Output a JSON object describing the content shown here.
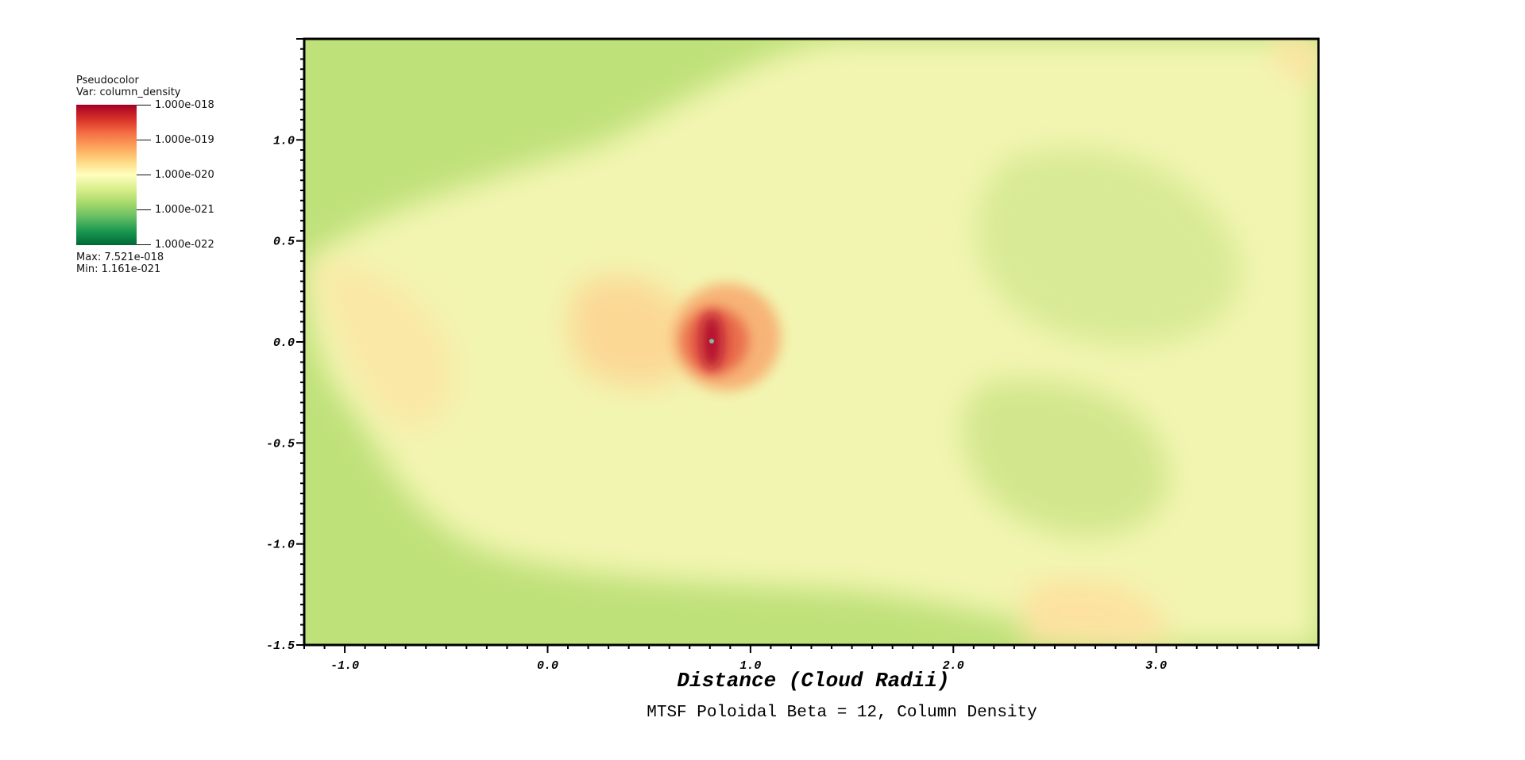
{
  "legend": {
    "title": "Pseudocolor",
    "var": "Var: column_density",
    "ticks": [
      "1.000e-018",
      "1.000e-019",
      "1.000e-020",
      "1.000e-021",
      "1.000e-022"
    ],
    "max": "Max:  7.521e-018",
    "min": "Min:  1.161e-021",
    "colormap": [
      "#a50026",
      "#d73027",
      "#f46d43",
      "#fdae61",
      "#fee08b",
      "#ffffbf",
      "#d9ef8b",
      "#a6d96a",
      "#66bd63",
      "#1a9850",
      "#006837"
    ]
  },
  "chart_data": {
    "type": "heatmap",
    "title": "MTSF Poloidal Beta = 12, Column Density",
    "xlabel": "Distance (Cloud Radii)",
    "ylabel": "",
    "xlim": [
      -1.2,
      3.8
    ],
    "ylim": [
      -1.5,
      1.5
    ],
    "xticks": [
      "-1.0",
      "0.0",
      "1.0",
      "2.0",
      "3.0"
    ],
    "xtick_values": [
      -1.0,
      0.0,
      1.0,
      2.0,
      3.0
    ],
    "yticks": [
      "1.0",
      "0.5",
      "0.0",
      "-0.5",
      "-1.0",
      "-1.5"
    ],
    "ytick_values": [
      1.0,
      0.5,
      0.0,
      -0.5,
      -1.0,
      -1.5
    ],
    "variable": "column_density",
    "color_scale": "log",
    "color_range": [
      1e-22,
      1e-18
    ],
    "data_max": 7.521e-18,
    "data_min": 1.161e-21,
    "peak_location": [
      0.8,
      0.0
    ]
  }
}
